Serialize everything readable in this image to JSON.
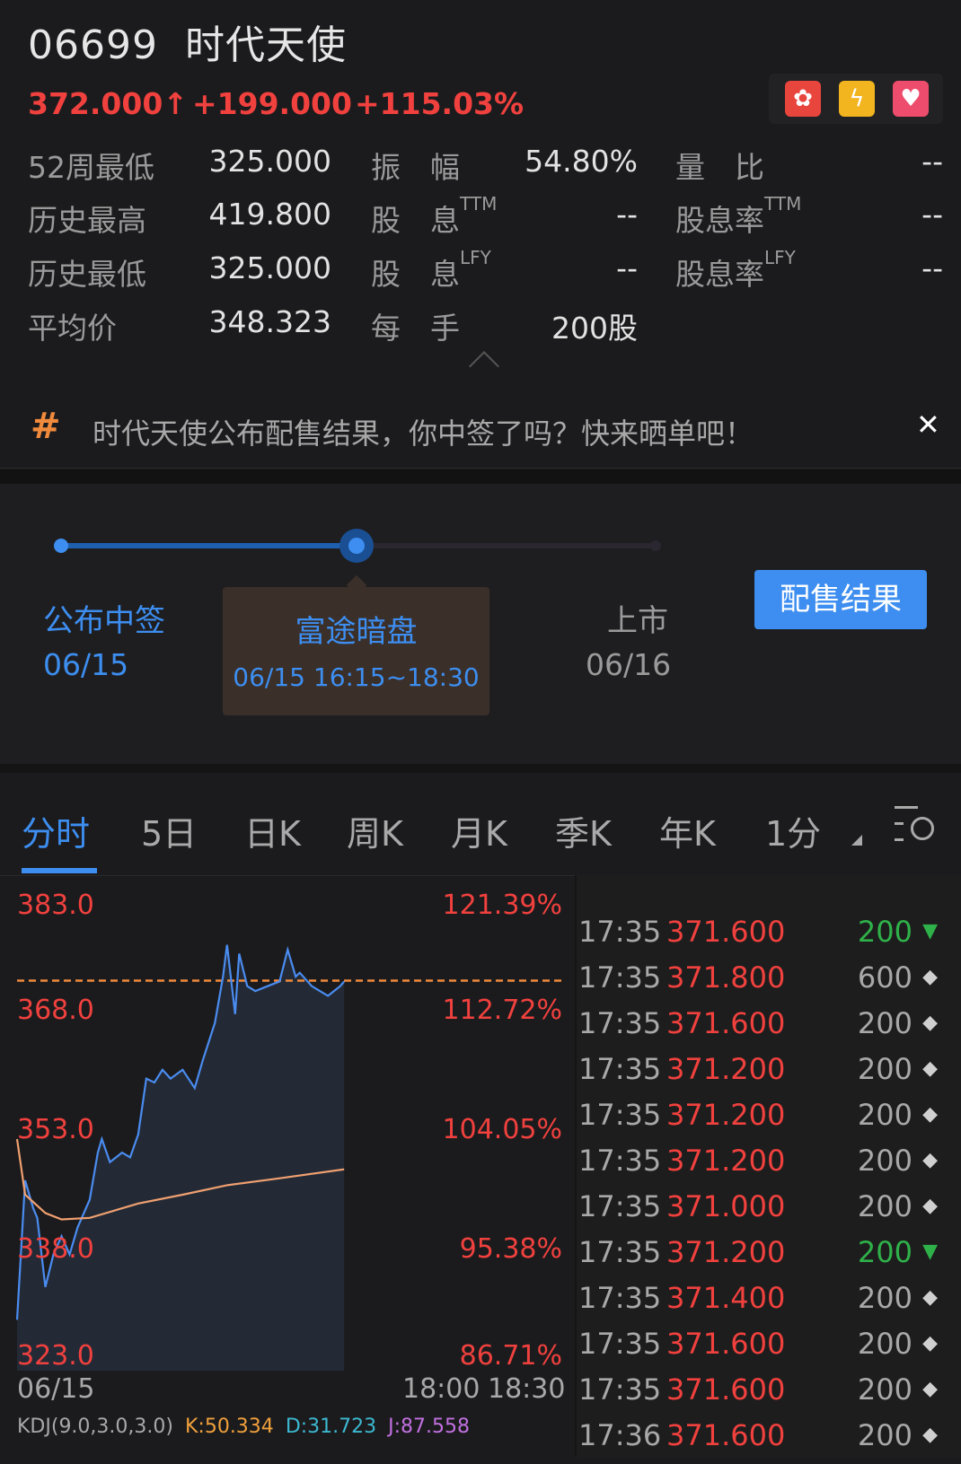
{
  "header": {
    "code": "06699",
    "name": "时代天使",
    "price": "372.000",
    "price_arrow": "↑",
    "change": "+199.000",
    "change_pct": "+115.03%",
    "up_color": "#f0413e",
    "icons": [
      "hk-flag-icon",
      "lightning-2-icon",
      "heart-icon"
    ]
  },
  "stats": [
    [
      {
        "label": "52周最低",
        "value": "325.000"
      },
      {
        "label": "振　幅",
        "sup": "",
        "value": "54.80%"
      },
      {
        "label": "量　比",
        "sup": "",
        "value": "--"
      }
    ],
    [
      {
        "label": "历史最高",
        "value": "419.800"
      },
      {
        "label": "股　息",
        "sup": "TTM",
        "value": "--"
      },
      {
        "label": "股息率",
        "sup": "TTM",
        "value": "--"
      }
    ],
    [
      {
        "label": "历史最低",
        "value": "325.000"
      },
      {
        "label": "股　息",
        "sup": "LFY",
        "value": "--"
      },
      {
        "label": "股息率",
        "sup": "LFY",
        "value": "--"
      }
    ],
    [
      {
        "label": "平均价",
        "value": "348.323"
      },
      {
        "label": "每　手",
        "sup": "",
        "value": "200股"
      }
    ]
  ],
  "banner": {
    "hash": "#",
    "text": "时代天使公布配售结果，你中签了吗？快来晒单吧！",
    "close": "✕"
  },
  "timeline": {
    "progress_step": 2,
    "steps": [
      {
        "label": "公布中签",
        "date": "06/15"
      },
      {
        "label": "富途暗盘",
        "date": "06/15 16:15~18:30"
      },
      {
        "label": "上市",
        "date": "06/16"
      }
    ],
    "button": "配售结果",
    "accent": "#3d8ef0"
  },
  "tabs": {
    "items": [
      "分时",
      "5日",
      "日K",
      "周K",
      "月K",
      "季K",
      "年K",
      "1分"
    ],
    "active": 0
  },
  "chart_data": {
    "type": "line",
    "ylim": [
      323.0,
      383.0
    ],
    "y_ticks": [
      "383.0",
      "368.0",
      "353.0",
      "338.0",
      "323.0"
    ],
    "pct_ticks": [
      "121.39%",
      "112.72%",
      "104.05%",
      "95.38%",
      "86.71%"
    ],
    "x_ticks": [
      "06/15",
      "18:00",
      "18:30"
    ],
    "x_range": [
      "16:15",
      "18:30"
    ],
    "current_price_line": 372.0,
    "series": [
      {
        "color": "#4a8cf0",
        "points": [
          [
            "16:15",
            329.4
          ],
          [
            "16:17",
            346.9
          ],
          [
            "16:19",
            343.4
          ],
          [
            "16:20",
            342.2
          ],
          [
            "16:22",
            333.5
          ],
          [
            "16:24",
            337.6
          ],
          [
            "16:26",
            339.9
          ],
          [
            "16:28",
            337.6
          ],
          [
            "16:30",
            341.0
          ],
          [
            "16:33",
            344.5
          ],
          [
            "16:35",
            350.4
          ],
          [
            "16:36",
            352.1
          ],
          [
            "16:38",
            349.2
          ],
          [
            "16:41",
            350.4
          ],
          [
            "16:43",
            349.8
          ],
          [
            "16:45",
            352.7
          ],
          [
            "16:47",
            359.7
          ],
          [
            "16:49",
            359.2
          ],
          [
            "16:51",
            360.8
          ],
          [
            "16:53",
            359.7
          ],
          [
            "16:56",
            360.8
          ],
          [
            "16:59",
            358.5
          ],
          [
            "17:01",
            362.0
          ],
          [
            "17:04",
            366.7
          ],
          [
            "17:06",
            372.5
          ],
          [
            "17:07",
            376.5
          ],
          [
            "17:09",
            367.8
          ],
          [
            "17:10",
            375.4
          ],
          [
            "17:12",
            371.3
          ],
          [
            "17:14",
            370.7
          ],
          [
            "17:17",
            371.3
          ],
          [
            "17:20",
            371.9
          ],
          [
            "17:22",
            375.9
          ],
          [
            "17:24",
            372.5
          ],
          [
            "17:25",
            373.0
          ],
          [
            "17:28",
            371.3
          ],
          [
            "17:30",
            370.7
          ],
          [
            "17:32",
            370.1
          ],
          [
            "17:35",
            371.3
          ],
          [
            "17:36",
            371.9
          ]
        ]
      },
      {
        "color": "#f0a070",
        "points": [
          [
            "16:15",
            352.1
          ],
          [
            "16:17",
            345.1
          ],
          [
            "16:22",
            342.8
          ],
          [
            "16:26",
            342.0
          ],
          [
            "16:33",
            342.2
          ],
          [
            "16:45",
            344.0
          ],
          [
            "16:56",
            345.1
          ],
          [
            "17:07",
            346.3
          ],
          [
            "17:19",
            347.1
          ],
          [
            "17:36",
            348.3
          ]
        ]
      }
    ]
  },
  "ticks": [
    {
      "time": "17:35",
      "price": "371.600",
      "vol": "200",
      "dir": "down"
    },
    {
      "time": "17:35",
      "price": "371.800",
      "vol": "600",
      "dir": "neutral"
    },
    {
      "time": "17:35",
      "price": "371.600",
      "vol": "200",
      "dir": "neutral"
    },
    {
      "time": "17:35",
      "price": "371.200",
      "vol": "200",
      "dir": "neutral"
    },
    {
      "time": "17:35",
      "price": "371.200",
      "vol": "200",
      "dir": "neutral"
    },
    {
      "time": "17:35",
      "price": "371.200",
      "vol": "200",
      "dir": "neutral"
    },
    {
      "time": "17:35",
      "price": "371.000",
      "vol": "200",
      "dir": "neutral"
    },
    {
      "time": "17:35",
      "price": "371.200",
      "vol": "200",
      "dir": "down"
    },
    {
      "time": "17:35",
      "price": "371.400",
      "vol": "200",
      "dir": "neutral"
    },
    {
      "time": "17:35",
      "price": "371.600",
      "vol": "200",
      "dir": "neutral"
    },
    {
      "time": "17:35",
      "price": "371.600",
      "vol": "200",
      "dir": "neutral"
    },
    {
      "time": "17:36",
      "price": "371.600",
      "vol": "200",
      "dir": "neutral"
    }
  ],
  "kdj": {
    "label": "KDJ(9.0,3.0,3.0)",
    "k": "K:50.334",
    "d": "D:31.723",
    "j": "J:87.558"
  }
}
